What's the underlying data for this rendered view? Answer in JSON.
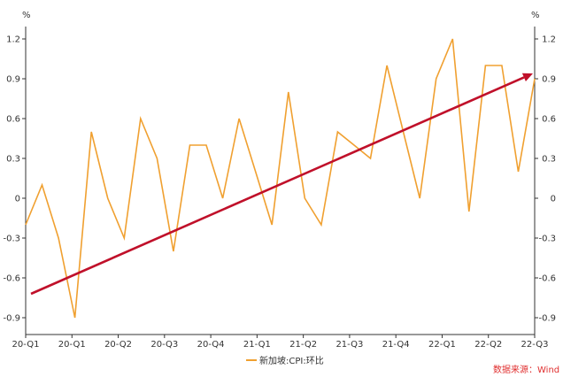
{
  "chart_data": {
    "type": "line",
    "unit_left": "%",
    "unit_right": "%",
    "ylim": [
      -0.9,
      1.2
    ],
    "yticks": [
      1.2,
      0.9,
      0.6,
      0.3,
      0,
      -0.3,
      -0.6,
      -0.9
    ],
    "x_labels": [
      "20-Q1",
      "20-Q1",
      "20-Q2",
      "20-Q3",
      "20-Q4",
      "21-Q1",
      "21-Q2",
      "21-Q3",
      "21-Q4",
      "22-Q1",
      "22-Q2",
      "22-Q3"
    ],
    "series": [
      {
        "name": "新加坡:CPI:环比",
        "color": "#f0a030",
        "values": [
          -0.2,
          0.1,
          -0.3,
          -0.9,
          0.5,
          0.0,
          -0.3,
          0.6,
          0.3,
          -0.4,
          0.4,
          0.4,
          0.0,
          0.6,
          0.2,
          -0.2,
          0.8,
          0.0,
          -0.2,
          0.5,
          0.4,
          0.3,
          1.0,
          0.5,
          0.0,
          0.9,
          1.2,
          -0.1,
          1.0,
          1.0,
          0.2,
          0.9
        ]
      }
    ],
    "trend_arrow": {
      "color": "#c0102a",
      "start_value": -0.72,
      "end_value": 0.94
    },
    "legend_position": "bottom",
    "grid": false
  },
  "source_text": "数据来源：Wind"
}
